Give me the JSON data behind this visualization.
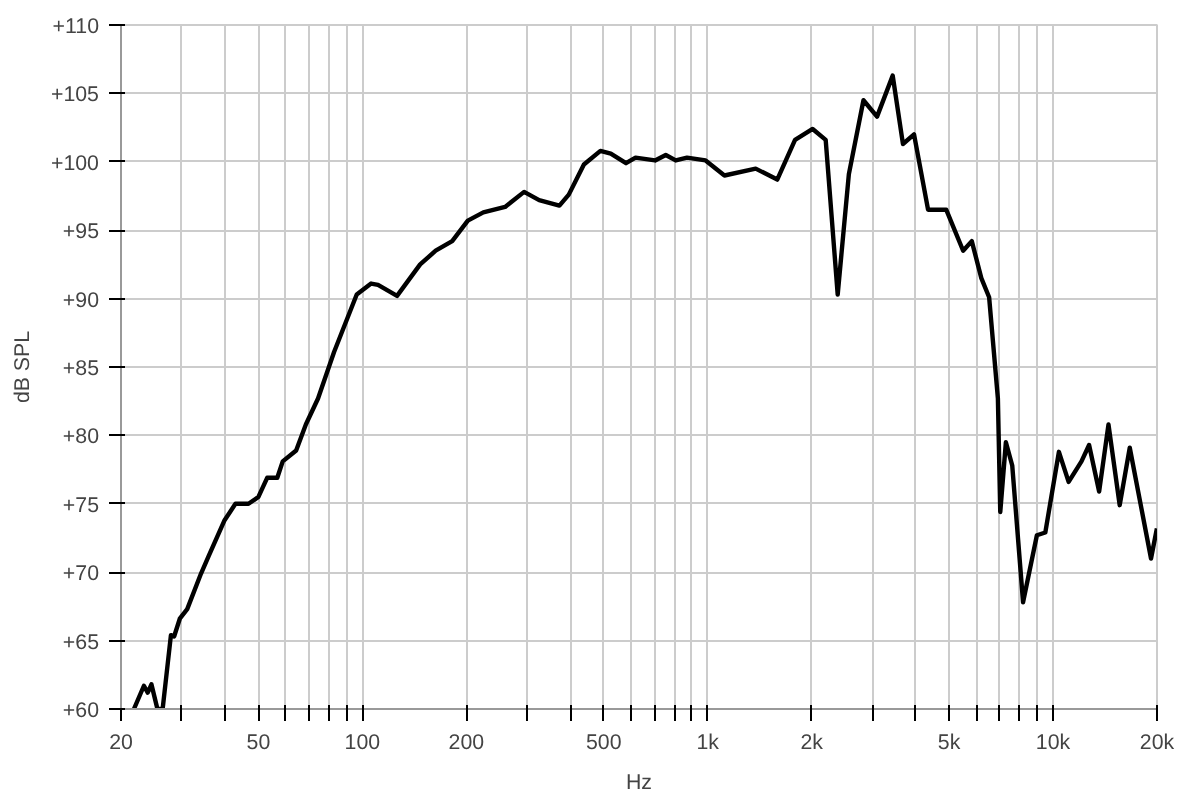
{
  "chart_data": {
    "type": "line",
    "xlabel": "Hz",
    "ylabel": "dB SPL",
    "log": "x",
    "grid": true,
    "marker": "none",
    "line_style": "solid",
    "xlim": [
      20,
      20000
    ],
    "ylim": [
      60,
      110
    ],
    "xticks": [
      20,
      {
        "value": 30,
        "label": null
      },
      {
        "value": 40,
        "label": null
      },
      50,
      {
        "value": 60,
        "label": null
      },
      {
        "value": 70,
        "label": null
      },
      {
        "value": 80,
        "label": null
      },
      {
        "value": 90,
        "label": null
      },
      100,
      200,
      {
        "value": 300,
        "label": null
      },
      {
        "value": 400,
        "label": null
      },
      500,
      {
        "value": 600,
        "label": null
      },
      {
        "value": 700,
        "label": null
      },
      {
        "value": 800,
        "label": null
      },
      {
        "value": 900,
        "label": null
      },
      {
        "value": 1000,
        "label": "1k"
      },
      {
        "value": 2000,
        "label": "2k"
      },
      {
        "value": 3000,
        "label": null
      },
      {
        "value": 4000,
        "label": null
      },
      {
        "value": 5000,
        "label": "5k"
      },
      {
        "value": 6000,
        "label": null
      },
      {
        "value": 7000,
        "label": null
      },
      {
        "value": 8000,
        "label": null
      },
      {
        "value": 9000,
        "label": null
      },
      {
        "value": 10000,
        "label": "10k"
      },
      {
        "value": 20000,
        "label": "20k"
      }
    ],
    "yticks": [
      {
        "value": 60,
        "label": "+60"
      },
      {
        "value": 65,
        "label": "+65"
      },
      {
        "value": 70,
        "label": "+70"
      },
      {
        "value": 75,
        "label": "+75"
      },
      {
        "value": 80,
        "label": "+80"
      },
      {
        "value": 85,
        "label": "+85"
      },
      {
        "value": 90,
        "label": "+90"
      },
      {
        "value": 95,
        "label": "+95"
      },
      {
        "value": 100,
        "label": "+100"
      },
      {
        "value": 105,
        "label": "+105"
      },
      {
        "value": 110,
        "label": "+110"
      }
    ],
    "series": [
      {
        "color": "#000000",
        "x": [
          21.8,
          23.3,
          23.9,
          24.5,
          25.5,
          26.4,
          27.9,
          28.5,
          29.6,
          31.1,
          34.1,
          35.9,
          39.9,
          42.9,
          46.8,
          50,
          53,
          56.7,
          58.8,
          64.3,
          68.6,
          74.4,
          82.8,
          96.3,
          106,
          111,
          126,
          147,
          163,
          182,
          202,
          224,
          259,
          294,
          325,
          372,
          396,
          438,
          489,
          524,
          580,
          618,
          704,
          756,
          808,
          871,
          986,
          1118,
          1377,
          1590,
          1790,
          2013,
          2196,
          2379,
          2563,
          2825,
          3093,
          3433,
          3676,
          3958,
          4346,
          4905,
          5491,
          5817,
          6199,
          6530,
          6923,
          7033,
          7302,
          7618,
          8188,
          8979,
          9497,
          10399,
          11095,
          12087,
          12717,
          13598,
          14472,
          15595,
          16679,
          19218,
          19987
        ],
        "values": [
          60,
          61.7,
          61.2,
          61.8,
          60,
          60,
          65.4,
          65.3,
          66.6,
          67.3,
          69.9,
          71.2,
          73.8,
          75,
          75,
          75.5,
          76.9,
          76.9,
          78.1,
          78.9,
          80.8,
          82.7,
          86.1,
          90.3,
          91.1,
          91,
          90.2,
          92.5,
          93.5,
          94.2,
          95.7,
          96.3,
          96.7,
          97.8,
          97.2,
          96.8,
          97.6,
          99.8,
          100.8,
          100.6,
          99.9,
          100.3,
          100.1,
          100.5,
          100.1,
          100.3,
          100.1,
          99,
          99.5,
          98.7,
          101.6,
          102.4,
          101.6,
          90.3,
          99.1,
          104.5,
          103.3,
          106.3,
          101.3,
          102,
          96.5,
          96.5,
          93.5,
          94.2,
          91.5,
          90.1,
          82.7,
          74.4,
          79.5,
          77.8,
          67.8,
          72.7,
          72.9,
          78.8,
          76.6,
          78.1,
          79.3,
          75.9,
          80.8,
          74.9,
          79.1,
          71,
          73.2
        ]
      }
    ]
  }
}
